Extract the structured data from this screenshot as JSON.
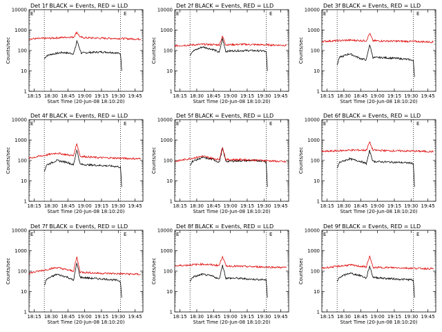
{
  "window": {
    "background": "#ffffff"
  },
  "colors": {
    "events": "#000000",
    "lld": "#dd0000",
    "axes": "#000000"
  },
  "shared": {
    "xlabel": "Start Time (20-Jun-08 18:10:20)",
    "ylabel": "Counts/sec",
    "x_tick_labels": [
      "18:15",
      "18:30",
      "18:45",
      "19:00",
      "19:15",
      "19:30",
      "19:45"
    ],
    "y_tick_labels": [
      "1",
      "10",
      "100",
      "1000",
      "10000"
    ],
    "corner_marker": "E"
  },
  "chart_data": [
    {
      "type": "line",
      "title": "Det 1f BLACK = Events, RED = LLD",
      "x_unit": "minutes after 18:10:20",
      "xlim": [
        "18:10:20",
        "19:52"
      ],
      "ylim": [
        1,
        10000
      ],
      "y_scale": "log",
      "vlines": [
        "18:24",
        "19:32"
      ],
      "series": [
        {
          "name": "Events",
          "color": "#000000",
          "x": [
            "18:24",
            "18:26",
            "18:30",
            "18:40",
            "18:50",
            "18:52",
            "18:53",
            "18:55",
            "18:57",
            "19:05",
            "19:15",
            "19:25",
            "19:32",
            "19:33"
          ],
          "y": [
            40,
            55,
            65,
            80,
            70,
            150,
            300,
            150,
            75,
            80,
            85,
            80,
            70,
            10
          ]
        },
        {
          "name": "LLD",
          "color": "#dd0000",
          "x": [
            "18:10:20",
            "18:30",
            "18:45",
            "18:50",
            "18:53",
            "18:56",
            "19:00",
            "19:15",
            "19:30",
            "19:50"
          ],
          "y": [
            370,
            400,
            450,
            450,
            800,
            450,
            420,
            400,
            390,
            360
          ]
        }
      ]
    },
    {
      "type": "line",
      "title": "Det 2f BLACK = Events, RED = LLD",
      "x_unit": "minutes after 18:10:20",
      "xlim": [
        "18:10:20",
        "19:52"
      ],
      "ylim": [
        1,
        10000
      ],
      "y_scale": "log",
      "vlines": [
        "18:24",
        "19:32"
      ],
      "series": [
        {
          "name": "Events",
          "color": "#000000",
          "x": [
            "18:24",
            "18:26",
            "18:35",
            "18:45",
            "18:50",
            "18:53",
            "18:56",
            "19:00",
            "19:15",
            "19:30",
            "19:32",
            "19:33"
          ],
          "y": [
            60,
            90,
            150,
            110,
            80,
            380,
            90,
            95,
            100,
            95,
            80,
            10
          ]
        },
        {
          "name": "LLD",
          "color": "#dd0000",
          "x": [
            "18:10:20",
            "18:35",
            "18:50",
            "18:53",
            "18:56",
            "19:10",
            "19:30",
            "19:50"
          ],
          "y": [
            170,
            200,
            190,
            500,
            190,
            200,
            190,
            180
          ]
        }
      ]
    },
    {
      "type": "line",
      "title": "Det 3f BLACK = Events, RED = LLD",
      "x_unit": "minutes after 18:10:20",
      "xlim": [
        "18:10:20",
        "19:52"
      ],
      "ylim": [
        1,
        10000
      ],
      "y_scale": "log",
      "vlines": [
        "18:24",
        "19:32"
      ],
      "series": [
        {
          "name": "Events",
          "color": "#000000",
          "x": [
            "18:24",
            "18:26",
            "18:35",
            "18:45",
            "18:50",
            "18:53",
            "18:56",
            "19:05",
            "19:20",
            "19:30",
            "19:32",
            "19:33"
          ],
          "y": [
            20,
            45,
            70,
            40,
            35,
            200,
            45,
            45,
            40,
            35,
            30,
            5
          ]
        },
        {
          "name": "LLD",
          "color": "#dd0000",
          "x": [
            "18:10:20",
            "18:35",
            "18:50",
            "18:53",
            "18:56",
            "19:10",
            "19:30",
            "19:50"
          ],
          "y": [
            280,
            320,
            300,
            700,
            300,
            290,
            280,
            260
          ]
        }
      ]
    },
    {
      "type": "line",
      "title": "Det 4f BLACK = Events, RED = LLD",
      "x_unit": "minutes after 18:10:20",
      "xlim": [
        "18:10:20",
        "19:52"
      ],
      "ylim": [
        1,
        10000
      ],
      "y_scale": "log",
      "vlines": [
        "18:24",
        "19:32"
      ],
      "series": [
        {
          "name": "Events",
          "color": "#000000",
          "x": [
            "18:24",
            "18:26",
            "18:35",
            "18:45",
            "18:50",
            "18:53",
            "18:56",
            "19:05",
            "19:20",
            "19:30",
            "19:32",
            "19:33"
          ],
          "y": [
            30,
            60,
            100,
            80,
            60,
            350,
            65,
            60,
            55,
            50,
            45,
            5
          ]
        },
        {
          "name": "LLD",
          "color": "#dd0000",
          "x": [
            "18:10:20",
            "18:35",
            "18:50",
            "18:53",
            "18:56",
            "19:10",
            "19:30",
            "19:50"
          ],
          "y": [
            130,
            230,
            170,
            700,
            160,
            140,
            130,
            120
          ]
        }
      ]
    },
    {
      "type": "line",
      "title": "Det 5f BLACK = Events, RED = LLD",
      "x_unit": "minutes after 18:10:20",
      "xlim": [
        "18:10:20",
        "19:52"
      ],
      "ylim": [
        1,
        10000
      ],
      "y_scale": "log",
      "vlines": [
        "18:24",
        "19:32"
      ],
      "series": [
        {
          "name": "Events",
          "color": "#000000",
          "x": [
            "18:24",
            "18:26",
            "18:35",
            "18:45",
            "18:50",
            "18:53",
            "18:56",
            "19:05",
            "19:20",
            "19:30",
            "19:32",
            "19:33"
          ],
          "y": [
            60,
            90,
            140,
            110,
            80,
            400,
            90,
            95,
            100,
            95,
            80,
            5
          ]
        },
        {
          "name": "LLD",
          "color": "#dd0000",
          "x": [
            "18:10:20",
            "18:35",
            "18:50",
            "18:53",
            "18:56",
            "19:10",
            "19:30",
            "19:50"
          ],
          "y": [
            90,
            160,
            110,
            450,
            110,
            110,
            100,
            85
          ]
        }
      ]
    },
    {
      "type": "line",
      "title": "Det 6f BLACK = Events, RED = LLD",
      "x_unit": "minutes after 18:10:20",
      "xlim": [
        "18:10:20",
        "19:52"
      ],
      "ylim": [
        1,
        10000
      ],
      "y_scale": "log",
      "vlines": [
        "18:24",
        "19:32"
      ],
      "series": [
        {
          "name": "Events",
          "color": "#000000",
          "x": [
            "18:24",
            "18:26",
            "18:35",
            "18:45",
            "18:50",
            "18:53",
            "18:56",
            "19:05",
            "19:20",
            "19:30",
            "19:32",
            "19:33"
          ],
          "y": [
            40,
            80,
            120,
            90,
            70,
            300,
            90,
            85,
            80,
            75,
            70,
            5
          ]
        },
        {
          "name": "LLD",
          "color": "#dd0000",
          "x": [
            "18:10:20",
            "18:35",
            "18:50",
            "18:53",
            "18:56",
            "19:10",
            "19:30",
            "19:50"
          ],
          "y": [
            270,
            320,
            320,
            800,
            320,
            300,
            290,
            270
          ]
        }
      ]
    },
    {
      "type": "line",
      "title": "Det 7f BLACK = Events, RED = LLD",
      "x_unit": "minutes after 18:10:20",
      "xlim": [
        "18:10:20",
        "19:52"
      ],
      "ylim": [
        1,
        10000
      ],
      "y_scale": "log",
      "vlines": [
        "18:24",
        "19:32"
      ],
      "series": [
        {
          "name": "Events",
          "color": "#000000",
          "x": [
            "18:24",
            "18:26",
            "18:35",
            "18:45",
            "18:50",
            "18:53",
            "18:56",
            "19:05",
            "19:20",
            "19:30",
            "19:32",
            "19:33"
          ],
          "y": [
            20,
            40,
            70,
            50,
            35,
            250,
            50,
            45,
            40,
            35,
            30,
            5
          ]
        },
        {
          "name": "LLD",
          "color": "#dd0000",
          "x": [
            "18:10:20",
            "18:35",
            "18:50",
            "18:53",
            "18:56",
            "19:10",
            "19:30",
            "19:50"
          ],
          "y": [
            80,
            150,
            100,
            500,
            90,
            80,
            75,
            70
          ]
        }
      ]
    },
    {
      "type": "line",
      "title": "Det 8f BLACK = Events, RED = LLD",
      "x_unit": "minutes after 18:10:20",
      "xlim": [
        "18:10:20",
        "19:52"
      ],
      "ylim": [
        1,
        10000
      ],
      "y_scale": "log",
      "vlines": [
        "18:24",
        "19:32"
      ],
      "series": [
        {
          "name": "Events",
          "color": "#000000",
          "x": [
            "18:24",
            "18:26",
            "18:35",
            "18:45",
            "18:50",
            "18:53",
            "18:56",
            "19:05",
            "19:20",
            "19:30",
            "19:32",
            "19:33"
          ],
          "y": [
            30,
            50,
            70,
            55,
            40,
            200,
            45,
            45,
            40,
            38,
            35,
            5
          ]
        },
        {
          "name": "LLD",
          "color": "#dd0000",
          "x": [
            "18:10:20",
            "18:35",
            "18:50",
            "18:53",
            "18:56",
            "19:10",
            "19:30",
            "19:50"
          ],
          "y": [
            180,
            220,
            190,
            550,
            180,
            170,
            160,
            150
          ]
        }
      ]
    },
    {
      "type": "line",
      "title": "Det 9f BLACK = Events, RED = LLD",
      "x_unit": "minutes after 18:10:20",
      "xlim": [
        "18:10:20",
        "19:52"
      ],
      "ylim": [
        1,
        10000
      ],
      "y_scale": "log",
      "vlines": [
        "18:24",
        "19:32"
      ],
      "series": [
        {
          "name": "Events",
          "color": "#000000",
          "x": [
            "18:24",
            "18:26",
            "18:35",
            "18:45",
            "18:50",
            "18:53",
            "18:56",
            "19:05",
            "19:20",
            "19:30",
            "19:32",
            "19:33"
          ],
          "y": [
            30,
            50,
            80,
            60,
            45,
            180,
            50,
            45,
            40,
            38,
            35,
            5
          ]
        },
        {
          "name": "LLD",
          "color": "#dd0000",
          "x": [
            "18:10:20",
            "18:35",
            "18:50",
            "18:53",
            "18:56",
            "19:10",
            "19:30",
            "19:50"
          ],
          "y": [
            140,
            200,
            160,
            550,
            150,
            150,
            140,
            130
          ]
        }
      ]
    }
  ]
}
